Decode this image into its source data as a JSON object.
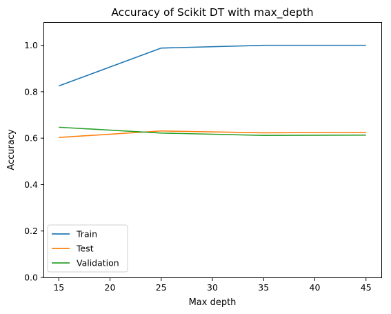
{
  "chart_data": {
    "type": "line",
    "title": "Accuracy of Scikit DT with max_depth",
    "xlabel": "Max depth",
    "ylabel": "Accuracy",
    "x": [
      15,
      25,
      35,
      45
    ],
    "xlim": [
      13.5,
      46.5
    ],
    "ylim": [
      0.0,
      1.1
    ],
    "xticks": [
      15,
      20,
      25,
      30,
      35,
      40,
      45
    ],
    "yticks": [
      0.0,
      0.2,
      0.4,
      0.6,
      0.8,
      1.0
    ],
    "grid": false,
    "legend_position": "bottom-left",
    "series": [
      {
        "name": "Train",
        "color": "#1f77b4",
        "values": [
          0.825,
          0.988,
          1.0,
          1.0
        ]
      },
      {
        "name": "Test",
        "color": "#ff7f0e",
        "values": [
          0.603,
          0.631,
          0.623,
          0.625
        ]
      },
      {
        "name": "Validation",
        "color": "#2ca02c",
        "values": [
          0.647,
          0.622,
          0.612,
          0.613
        ]
      }
    ]
  }
}
